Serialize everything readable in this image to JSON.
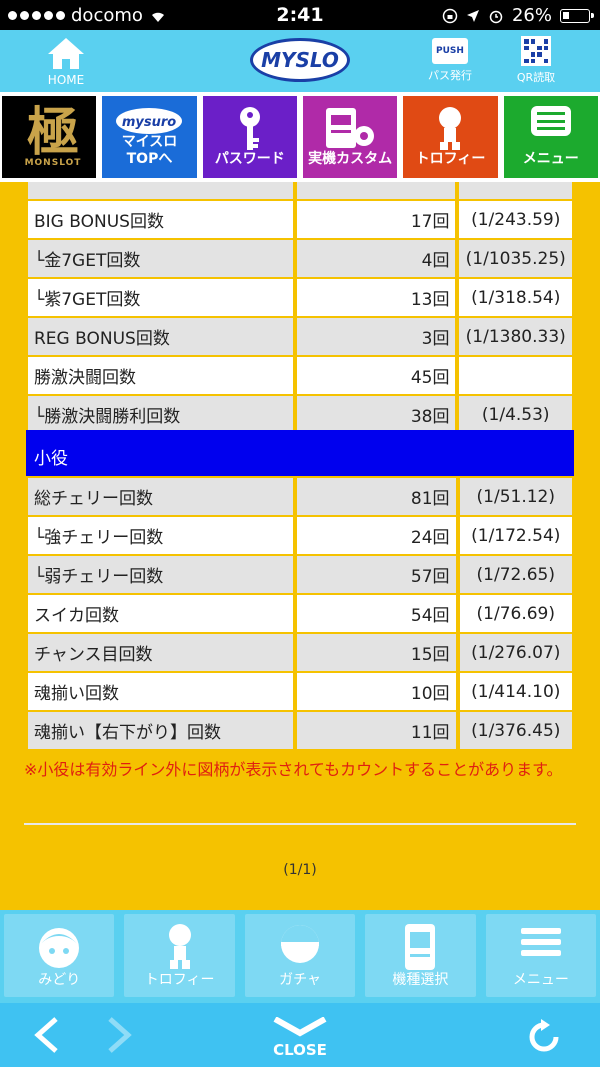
{
  "status_bar": {
    "carrier": "docomo",
    "time": "2:41",
    "battery": "26%"
  },
  "header": {
    "home_label": "HOME",
    "logo_text": "MYSLO",
    "push_label": "パス発行",
    "push_badge": "PUSH",
    "qr_label": "QR読取"
  },
  "tiles": {
    "brand_kanji": "極",
    "brand_sub": "MONSLOT",
    "mysuro_top": "マイスロ\nTOPへ",
    "mysuro_line1": "マイスロ",
    "mysuro_line2": "TOPへ",
    "password": "パスワード",
    "custom": "実機カスタム",
    "trophy": "トロフィー",
    "menu": "メニュー"
  },
  "rows_top": [
    {
      "name": "BIG BONUS回数",
      "count": "17回",
      "rate": "(1/243.59)"
    },
    {
      "name": "└金7GET回数",
      "count": "4回",
      "rate": "(1/1035.25)"
    },
    {
      "name": "└紫7GET回数",
      "count": "13回",
      "rate": "(1/318.54)"
    },
    {
      "name": "REG BONUS回数",
      "count": "3回",
      "rate": "(1/1380.33)"
    },
    {
      "name": "勝激決闘回数",
      "count": "45回",
      "rate": ""
    },
    {
      "name": "└勝激決闘勝利回数",
      "count": "38回",
      "rate": "(1/4.53)"
    }
  ],
  "section_title": "小役",
  "rows_bottom": [
    {
      "name": "総チェリー回数",
      "count": "81回",
      "rate": "(1/51.12)"
    },
    {
      "name": "└強チェリー回数",
      "count": "24回",
      "rate": "(1/172.54)"
    },
    {
      "name": "└弱チェリー回数",
      "count": "57回",
      "rate": "(1/72.65)"
    },
    {
      "name": "スイカ回数",
      "count": "54回",
      "rate": "(1/76.69)"
    },
    {
      "name": "チャンス目回数",
      "count": "15回",
      "rate": "(1/276.07)"
    },
    {
      "name": "魂揃い回数",
      "count": "10回",
      "rate": "(1/414.10)"
    },
    {
      "name": "魂揃い【右下がり】回数",
      "count": "11回",
      "rate": "(1/376.45)"
    }
  ],
  "note": "※小役は有効ライン外に図柄が表示されてもカウントすることがあります。",
  "pager": "(1/1)",
  "bottom_nav": {
    "midori": "みどり",
    "trophy": "トロフィー",
    "gacha": "ガチャ",
    "model_select": "機種選択",
    "menu": "メニュー"
  },
  "browser": {
    "close_label": "CLOSE"
  },
  "colors": {
    "page_bg": "#f5c200",
    "header_bg": "#5ad0f0",
    "section_bg": "#0000ee",
    "note_text": "#e02010"
  }
}
